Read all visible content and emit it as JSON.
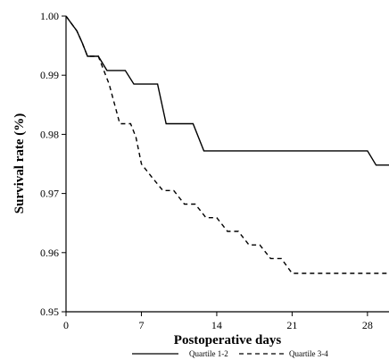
{
  "chart_data": {
    "type": "line",
    "xlabel": "Postoperative days",
    "ylabel": "Survival rate (%)",
    "xlim": [
      0,
      30
    ],
    "ylim": [
      0.95,
      1.0
    ],
    "xticks": [
      0,
      7,
      14,
      21,
      28
    ],
    "yticks": [
      0.95,
      0.96,
      0.97,
      0.98,
      0.99,
      1.0
    ],
    "ytick_labels": [
      "0.95",
      "0.96",
      "0.97",
      "0.98",
      "0.99",
      "1.00"
    ],
    "xtick_labels": [
      "0",
      "7",
      "14",
      "21",
      "28"
    ],
    "grid": false,
    "legend_position": "bottom",
    "series": [
      {
        "name": "Quartile 1-2",
        "line_style": "solid",
        "color": "#000000",
        "x": [
          0,
          0.4,
          1.0,
          1.5,
          2.0,
          3.0,
          3.8,
          5.5,
          6.3,
          8.5,
          9.3,
          11.8,
          12.8,
          28.0,
          28.8,
          30.0
        ],
        "y": [
          1.0,
          0.999,
          0.9975,
          0.9955,
          0.9932,
          0.9932,
          0.9908,
          0.9908,
          0.9885,
          0.9885,
          0.9818,
          0.9818,
          0.9772,
          0.9772,
          0.9748,
          0.9748
        ]
      },
      {
        "name": "Quartile 3-4",
        "line_style": "dashed",
        "color": "#000000",
        "x": [
          0,
          0.4,
          1.0,
          1.5,
          2.0,
          3.0,
          4.0,
          5.0,
          6.0,
          6.5,
          7.0,
          8.0,
          9.0,
          10.0,
          11.0,
          12.0,
          13.0,
          14.0,
          15.0,
          16.0,
          17.0,
          18.0,
          19.0,
          20.0,
          21.0,
          22.0,
          30.0
        ],
        "y": [
          1.0,
          0.999,
          0.9975,
          0.9955,
          0.9932,
          0.9932,
          0.9885,
          0.9818,
          0.9818,
          0.9795,
          0.975,
          0.9727,
          0.9705,
          0.9705,
          0.9682,
          0.9682,
          0.9659,
          0.9659,
          0.9636,
          0.9636,
          0.9613,
          0.9613,
          0.959,
          0.959,
          0.9565,
          0.9565,
          0.9565
        ]
      }
    ]
  }
}
